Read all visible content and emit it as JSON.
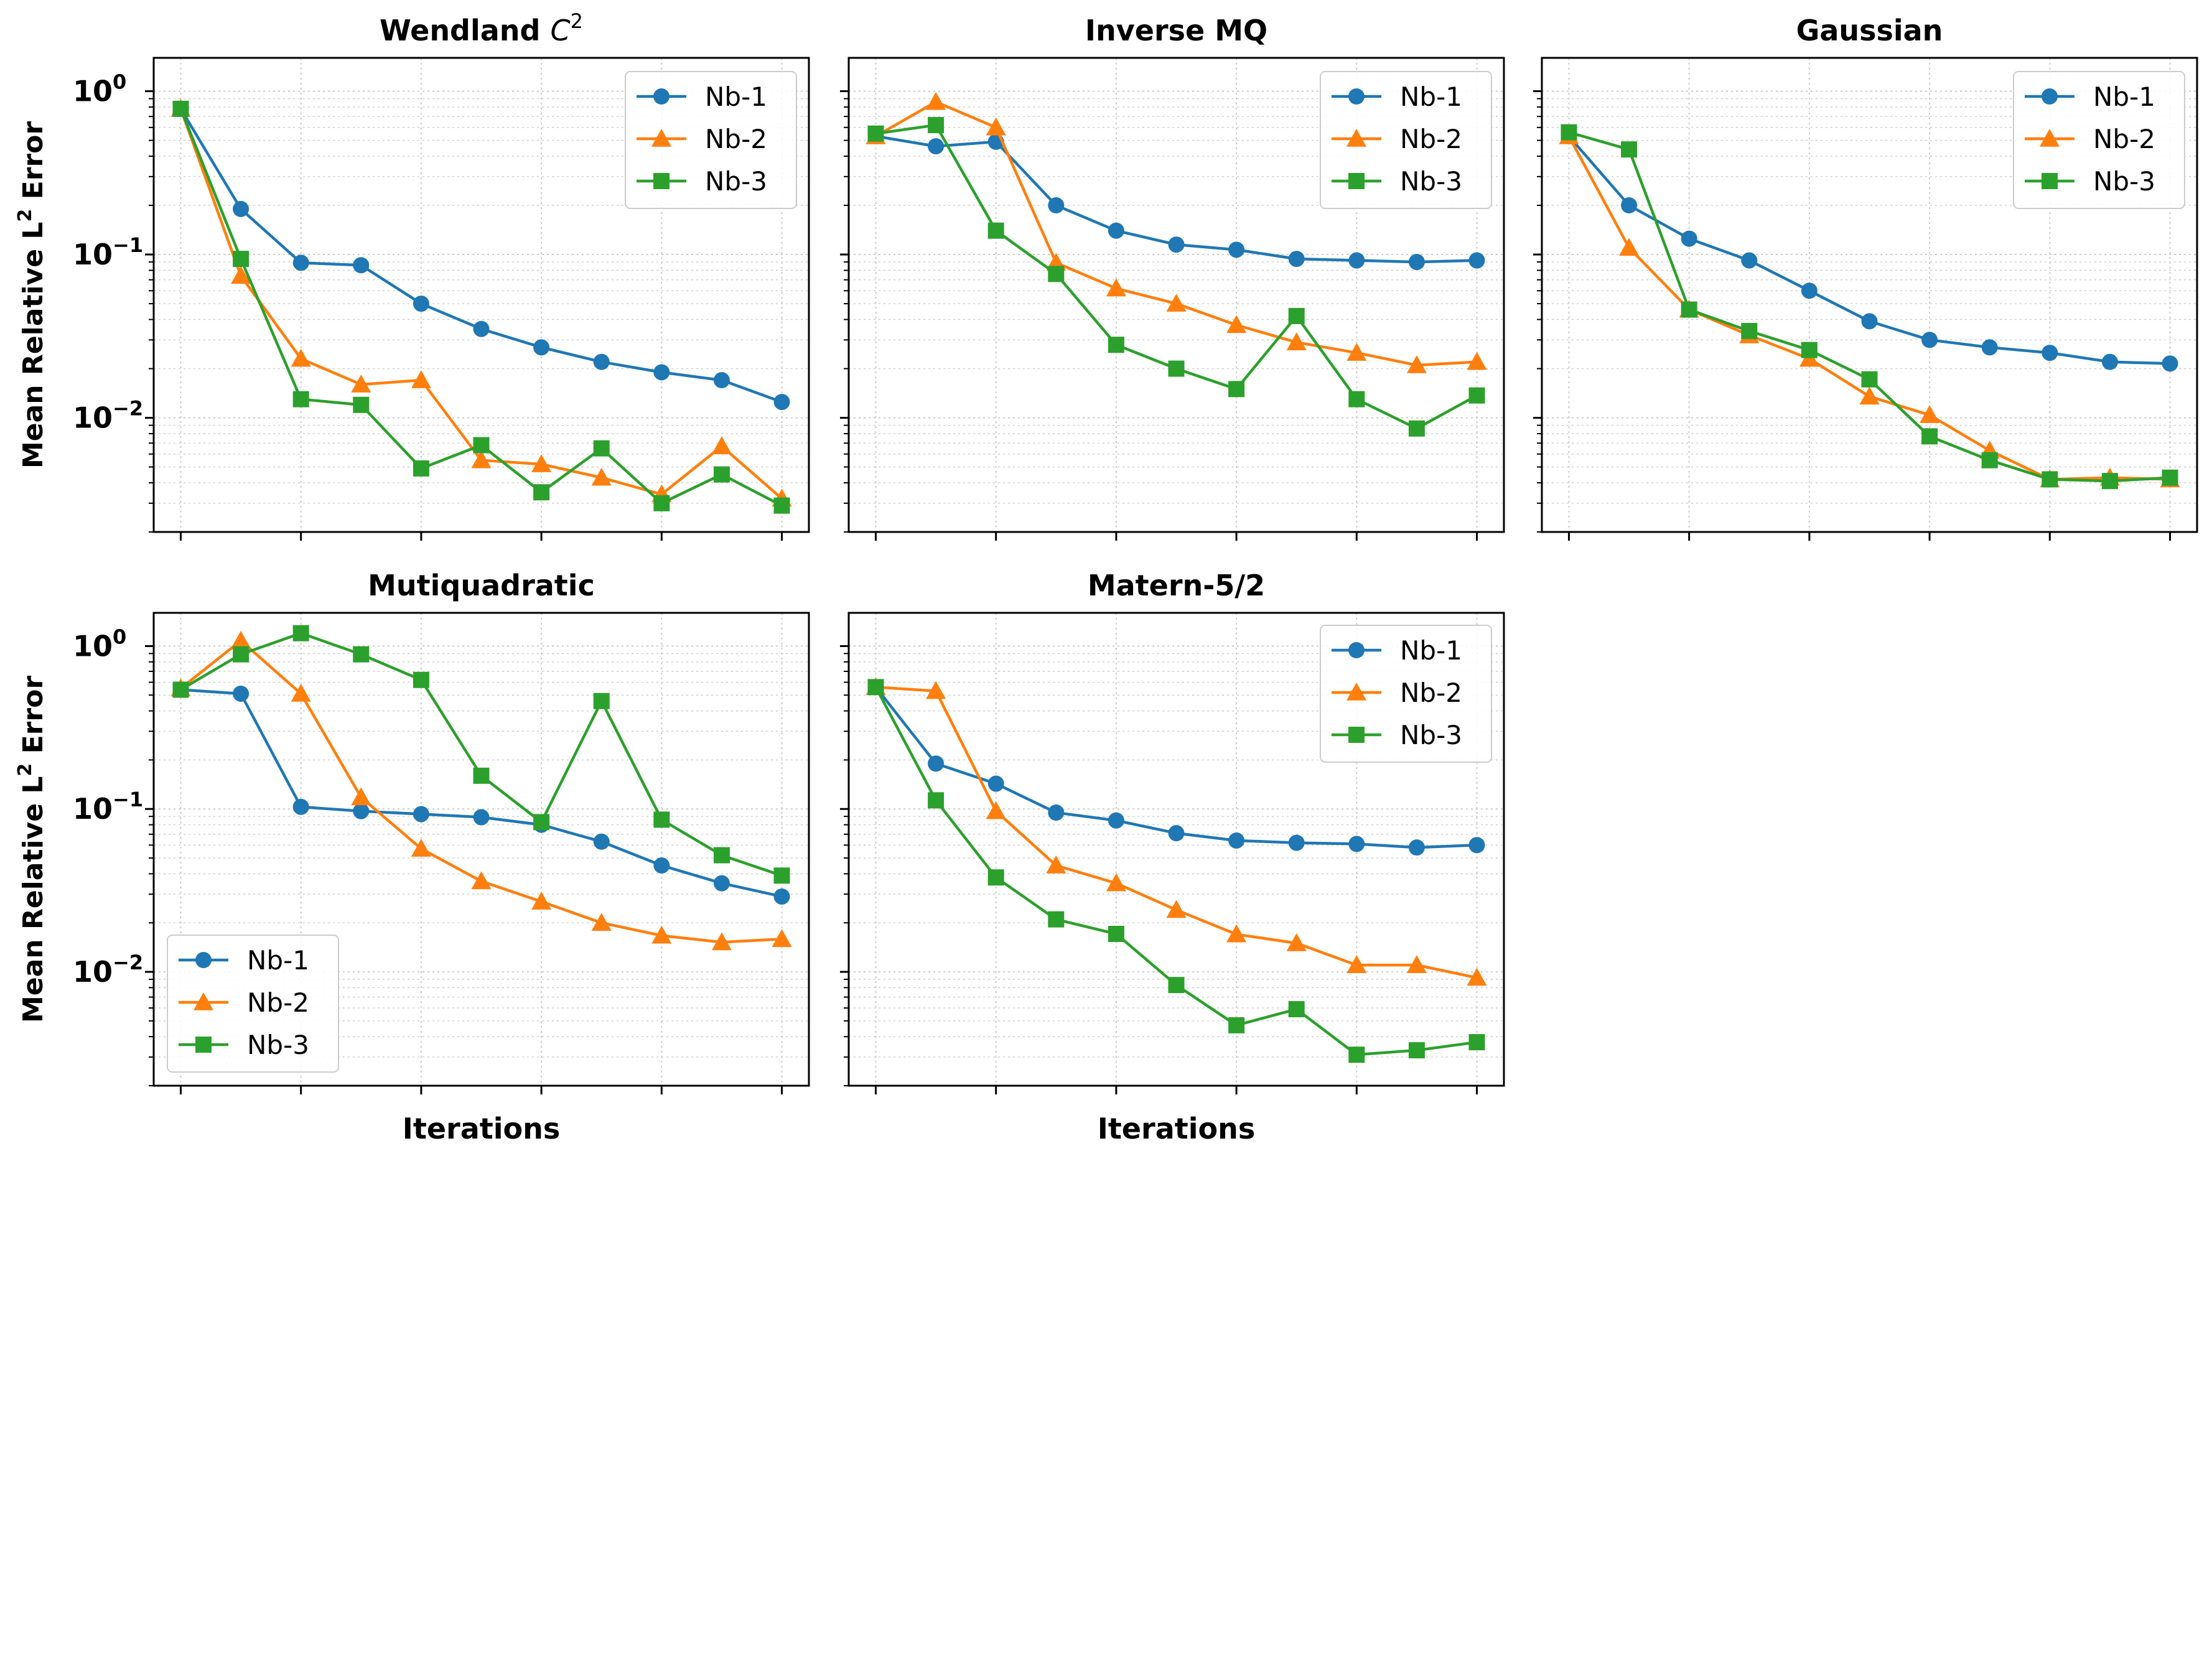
{
  "colors": {
    "Nb-1": "#1f77b4",
    "Nb-2": "#ff7f0e",
    "Nb-3": "#2ca02c"
  },
  "chart_data": [
    {
      "type": "line",
      "title": "Wendland C²",
      "xlabel": "",
      "ylabel": "Mean Relative L² Error",
      "yscale": "log",
      "ylim": [
        0.002,
        1.6
      ],
      "x": [
        1,
        2,
        3,
        4,
        5,
        6,
        7,
        8,
        9,
        10,
        11
      ],
      "legend": "upper right",
      "grid": true,
      "series": [
        {
          "name": "Nb-1",
          "marker": "circle",
          "values": [
            0.78,
            0.19,
            0.089,
            0.086,
            0.05,
            0.035,
            0.027,
            0.022,
            0.019,
            0.017,
            0.0125
          ]
        },
        {
          "name": "Nb-2",
          "marker": "triangle",
          "values": [
            0.78,
            0.074,
            0.023,
            0.016,
            0.017,
            0.0055,
            0.0052,
            0.0043,
            0.0034,
            0.0067,
            0.0032
          ]
        },
        {
          "name": "Nb-3",
          "marker": "square",
          "values": [
            0.78,
            0.094,
            0.013,
            0.012,
            0.0049,
            0.0068,
            0.0035,
            0.0065,
            0.003,
            0.0045,
            0.0029
          ]
        }
      ]
    },
    {
      "type": "line",
      "title": "Inverse MQ",
      "xlabel": "",
      "ylabel": "",
      "yscale": "log",
      "ylim": [
        0.002,
        1.6
      ],
      "x": [
        1,
        2,
        3,
        4,
        5,
        6,
        7,
        8,
        9,
        10,
        11
      ],
      "legend": "upper right",
      "grid": true,
      "series": [
        {
          "name": "Nb-1",
          "marker": "circle",
          "values": [
            0.53,
            0.46,
            0.49,
            0.2,
            0.14,
            0.115,
            0.107,
            0.094,
            0.092,
            0.09,
            0.092
          ]
        },
        {
          "name": "Nb-2",
          "marker": "triangle",
          "values": [
            0.53,
            0.86,
            0.6,
            0.089,
            0.062,
            0.05,
            0.037,
            0.029,
            0.025,
            0.021,
            0.022
          ]
        },
        {
          "name": "Nb-3",
          "marker": "square",
          "values": [
            0.55,
            0.62,
            0.14,
            0.076,
            0.028,
            0.02,
            0.015,
            0.042,
            0.013,
            0.0086,
            0.0137
          ]
        }
      ]
    },
    {
      "type": "line",
      "title": "Gaussian",
      "xlabel": "",
      "ylabel": "",
      "yscale": "log",
      "ylim": [
        0.002,
        1.6
      ],
      "x": [
        1,
        2,
        3,
        4,
        5,
        6,
        7,
        8,
        9,
        10,
        11
      ],
      "legend": "upper right",
      "grid": true,
      "series": [
        {
          "name": "Nb-1",
          "marker": "circle",
          "values": [
            0.53,
            0.2,
            0.125,
            0.092,
            0.06,
            0.039,
            0.03,
            0.027,
            0.025,
            0.022,
            0.0215
          ]
        },
        {
          "name": "Nb-2",
          "marker": "triangle",
          "values": [
            0.53,
            0.11,
            0.046,
            0.032,
            0.023,
            0.0135,
            0.0104,
            0.0063,
            0.0042,
            0.0043,
            0.0042
          ]
        },
        {
          "name": "Nb-3",
          "marker": "square",
          "values": [
            0.56,
            0.44,
            0.046,
            0.034,
            0.026,
            0.0172,
            0.0077,
            0.0055,
            0.0042,
            0.0041,
            0.0043
          ]
        }
      ]
    },
    {
      "type": "line",
      "title": "Mutiquadratic",
      "xlabel": "Iterations",
      "ylabel": "Mean Relative L² Error",
      "yscale": "log",
      "ylim": [
        0.002,
        1.6
      ],
      "x": [
        1,
        2,
        3,
        4,
        5,
        6,
        7,
        8,
        9,
        10,
        11
      ],
      "legend": "lower left",
      "grid": true,
      "series": [
        {
          "name": "Nb-1",
          "marker": "circle",
          "values": [
            0.54,
            0.51,
            0.103,
            0.097,
            0.093,
            0.089,
            0.08,
            0.063,
            0.045,
            0.035,
            0.029
          ]
        },
        {
          "name": "Nb-2",
          "marker": "triangle",
          "values": [
            0.55,
            1.08,
            0.51,
            0.118,
            0.057,
            0.036,
            0.027,
            0.02,
            0.0167,
            0.0152,
            0.0159
          ]
        },
        {
          "name": "Nb-3",
          "marker": "square",
          "values": [
            0.54,
            0.89,
            1.2,
            0.89,
            0.62,
            0.16,
            0.083,
            0.46,
            0.086,
            0.052,
            0.039
          ]
        }
      ]
    },
    {
      "type": "line",
      "title": "Matern-5/2",
      "xlabel": "Iterations",
      "ylabel": "",
      "yscale": "log",
      "ylim": [
        0.002,
        1.6
      ],
      "x": [
        1,
        2,
        3,
        4,
        5,
        6,
        7,
        8,
        9,
        10,
        11
      ],
      "legend": "upper right",
      "grid": true,
      "series": [
        {
          "name": "Nb-1",
          "marker": "circle",
          "values": [
            0.56,
            0.19,
            0.143,
            0.095,
            0.085,
            0.071,
            0.064,
            0.062,
            0.061,
            0.058,
            0.06
          ]
        },
        {
          "name": "Nb-2",
          "marker": "triangle",
          "values": [
            0.56,
            0.53,
            0.097,
            0.045,
            0.035,
            0.024,
            0.017,
            0.015,
            0.011,
            0.011,
            0.0092
          ]
        },
        {
          "name": "Nb-3",
          "marker": "square",
          "values": [
            0.56,
            0.113,
            0.038,
            0.021,
            0.0171,
            0.0083,
            0.0047,
            0.0059,
            0.0031,
            0.0033,
            0.0037
          ]
        }
      ]
    }
  ]
}
